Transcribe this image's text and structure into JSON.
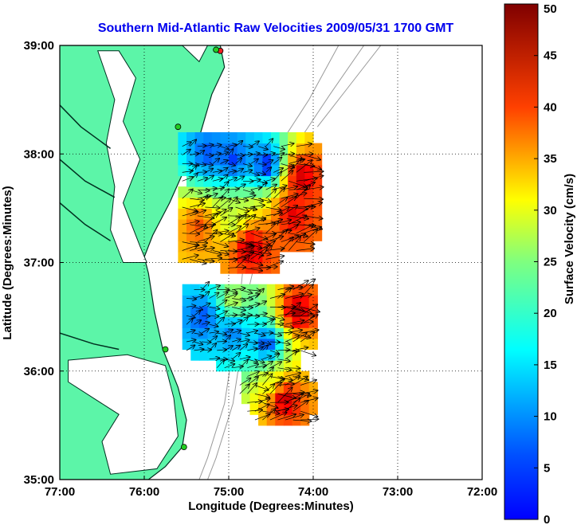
{
  "chart_data": {
    "type": "heatmap",
    "title": "Southern Mid-Atlantic Raw Velocities 2009/05/31 1700 GMT",
    "xlabel": "Longitude (Degrees:Minutes)",
    "ylabel": "Latitude (Degrees:Minutes)",
    "x_ticks": [
      {
        "value": -77,
        "label": "77:00"
      },
      {
        "value": -76,
        "label": "76:00"
      },
      {
        "value": -75,
        "label": "75:00"
      },
      {
        "value": -74,
        "label": "74:00"
      },
      {
        "value": -73,
        "label": "73:00"
      },
      {
        "value": -72,
        "label": "72:00"
      }
    ],
    "y_ticks": [
      {
        "value": 35,
        "label": "35:00"
      },
      {
        "value": 36,
        "label": "36:00"
      },
      {
        "value": 37,
        "label": "37:00"
      },
      {
        "value": 38,
        "label": "38:00"
      },
      {
        "value": 39,
        "label": "39:00"
      }
    ],
    "xlim": [
      -77,
      -72
    ],
    "ylim": [
      35,
      39
    ],
    "grid": true,
    "colorbar": {
      "label": "Surface Velocity (cm/s)",
      "range": [
        0,
        50
      ],
      "ticks": [
        0,
        5,
        10,
        15,
        20,
        25,
        30,
        35,
        40,
        45,
        50
      ],
      "colormap": "jet"
    },
    "colors": {
      "land": "#5cf5a8",
      "coast": "#003020",
      "bathymetry": "#9a9a9a",
      "grid": "#000000",
      "title": "#0000ee",
      "station_green": "#22cc22",
      "station_red": "#ee2222"
    },
    "stations": [
      {
        "name": "",
        "lon": -75.1,
        "lat": 38.95,
        "status": "red"
      },
      {
        "name": "",
        "lon": -75.15,
        "lat": 38.96,
        "status": "green"
      },
      {
        "name": "",
        "lon": -75.6,
        "lat": 38.25,
        "status": "green"
      },
      {
        "name": "",
        "lon": -75.75,
        "lat": 36.2,
        "status": "green"
      },
      {
        "name": "",
        "lon": -75.53,
        "lat": 35.3,
        "status": "green"
      }
    ],
    "velocity_fields": [
      {
        "region": "northern",
        "speed_samples": [
          {
            "lon": -75.3,
            "lat": 37.95,
            "speed": 10
          },
          {
            "lon": -75.0,
            "lat": 37.9,
            "speed": 9
          },
          {
            "lon": -74.6,
            "lat": 37.85,
            "speed": 7
          },
          {
            "lon": -74.2,
            "lat": 37.75,
            "speed": 47
          },
          {
            "lon": -74.3,
            "lat": 37.4,
            "speed": 45
          },
          {
            "lon": -75.0,
            "lat": 37.35,
            "speed": 28
          },
          {
            "lon": -75.4,
            "lat": 37.3,
            "speed": 40
          },
          {
            "lon": -74.8,
            "lat": 37.1,
            "speed": 48
          }
        ]
      },
      {
        "region": "southern",
        "speed_samples": [
          {
            "lon": -75.35,
            "lat": 36.45,
            "speed": 10
          },
          {
            "lon": -75.0,
            "lat": 36.3,
            "speed": 12
          },
          {
            "lon": -74.6,
            "lat": 36.2,
            "speed": 9
          },
          {
            "lon": -74.25,
            "lat": 36.5,
            "speed": 48
          },
          {
            "lon": -75.0,
            "lat": 36.6,
            "speed": 28
          },
          {
            "lon": -74.55,
            "lat": 35.85,
            "speed": 30
          },
          {
            "lon": -74.4,
            "lat": 35.7,
            "speed": 48
          }
        ]
      }
    ]
  }
}
